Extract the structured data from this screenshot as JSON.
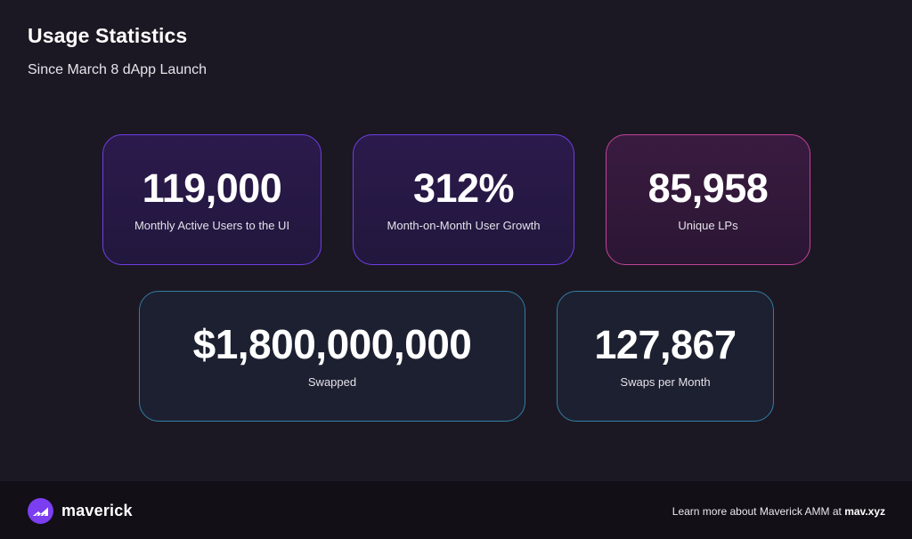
{
  "header": {
    "title": "Usage Statistics",
    "subtitle": "Since March 8 dApp Launch"
  },
  "stats": [
    {
      "value": "119,000",
      "label": "Monthly Active Users to the UI"
    },
    {
      "value": "312%",
      "label": "Month-on-Month User Growth"
    },
    {
      "value": "85,958",
      "label": "Unique LPs"
    },
    {
      "value": "$1,800,000,000",
      "label": "Swapped"
    },
    {
      "value": "127,867",
      "label": "Swaps per Month"
    }
  ],
  "footer": {
    "brand": "maverick",
    "note_prefix": "Learn more about Maverick AMM at ",
    "note_link": "mav.xyz"
  },
  "colors": {
    "background": "#1c1823",
    "accent_purple": "#6f3ee6",
    "accent_pink": "#c2429a",
    "accent_cyan": "#2f7fa3",
    "brand": "#7b3ef0"
  },
  "icons": {
    "logo": "maverick-logo-icon"
  }
}
